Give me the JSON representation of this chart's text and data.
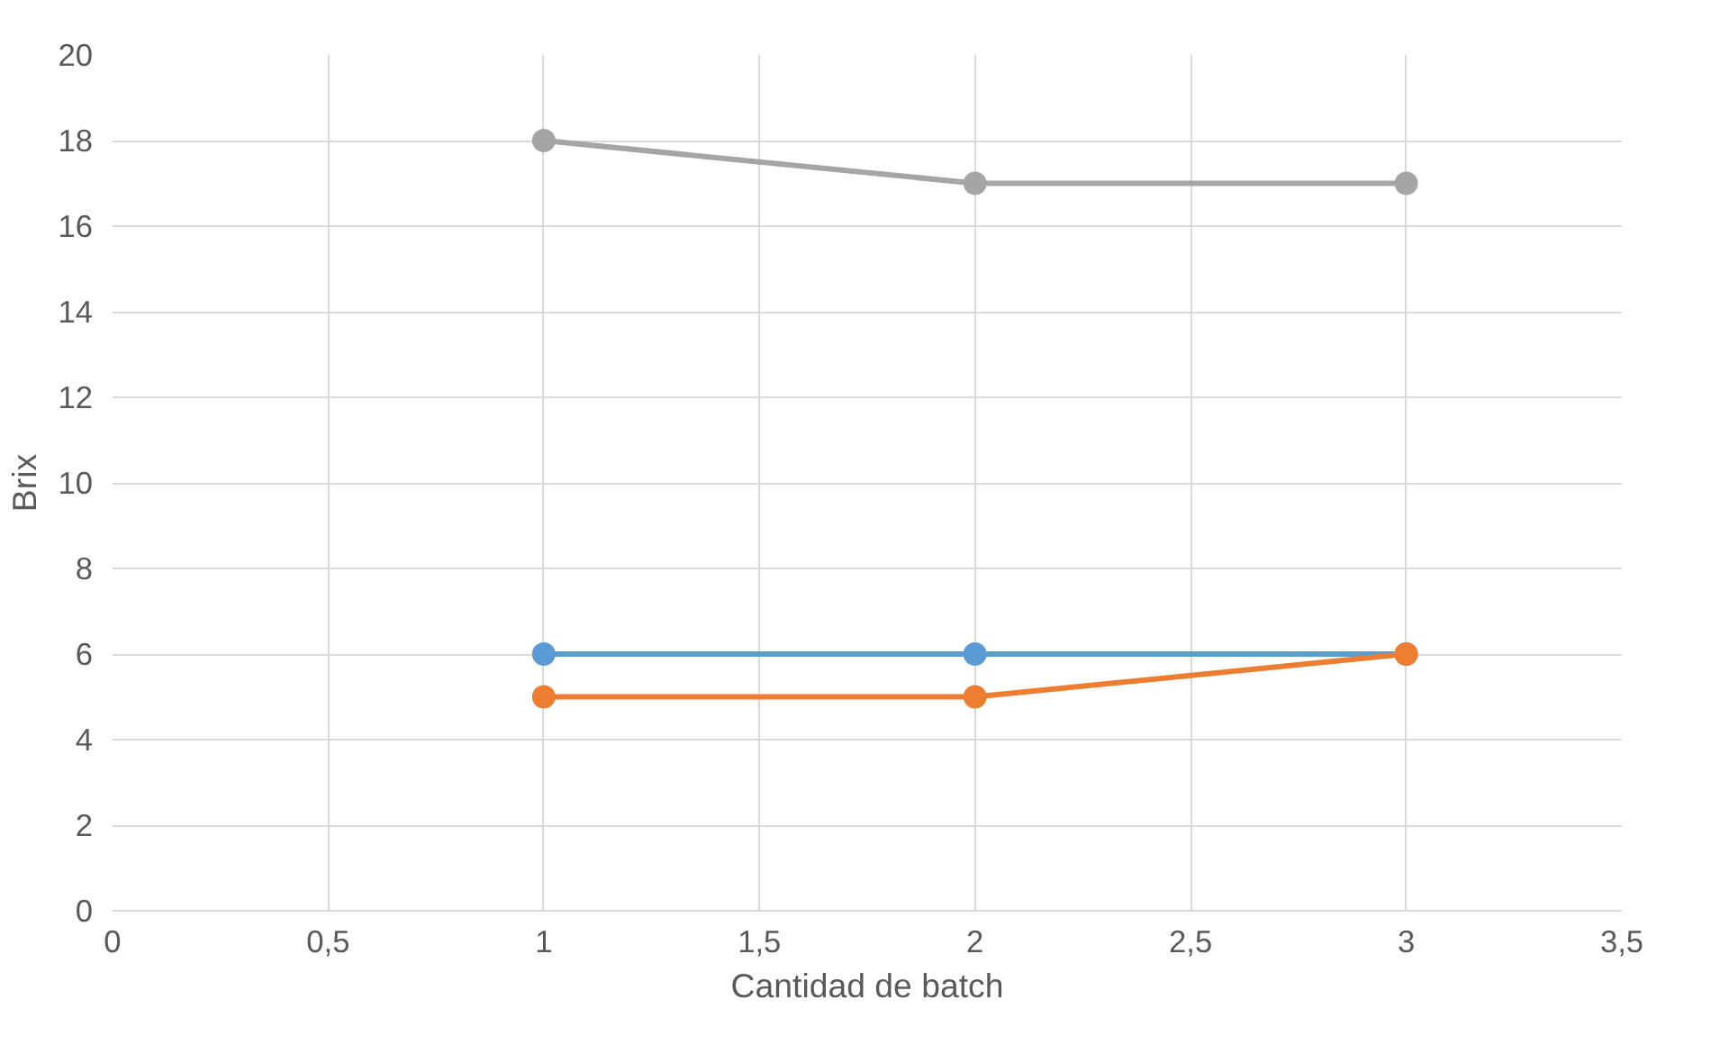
{
  "chart_data": {
    "type": "line",
    "xlabel": "Cantidad de batch",
    "ylabel": "Brix",
    "x": [
      1,
      2,
      3
    ],
    "series": [
      {
        "color": "#5b9bd5",
        "values": [
          6,
          6,
          6
        ]
      },
      {
        "color": "#ed7d31",
        "values": [
          5,
          5,
          6
        ]
      },
      {
        "color": "#a5a5a5",
        "values": [
          18,
          17,
          17
        ]
      }
    ],
    "xlim": [
      0,
      3.5
    ],
    "xticks": [
      0,
      {
        "value": 0.5,
        "label": "0,5"
      },
      1,
      {
        "value": 1.5,
        "label": "1,5"
      },
      2,
      {
        "value": 2.5,
        "label": "2,5"
      },
      3,
      {
        "value": 3.5,
        "label": "3,5"
      }
    ],
    "ylim": [
      0,
      20
    ],
    "yticks": [
      0,
      2,
      4,
      6,
      8,
      10,
      12,
      14,
      16,
      18,
      20
    ],
    "grid": true,
    "marker": "circle",
    "line_style": "solid"
  }
}
